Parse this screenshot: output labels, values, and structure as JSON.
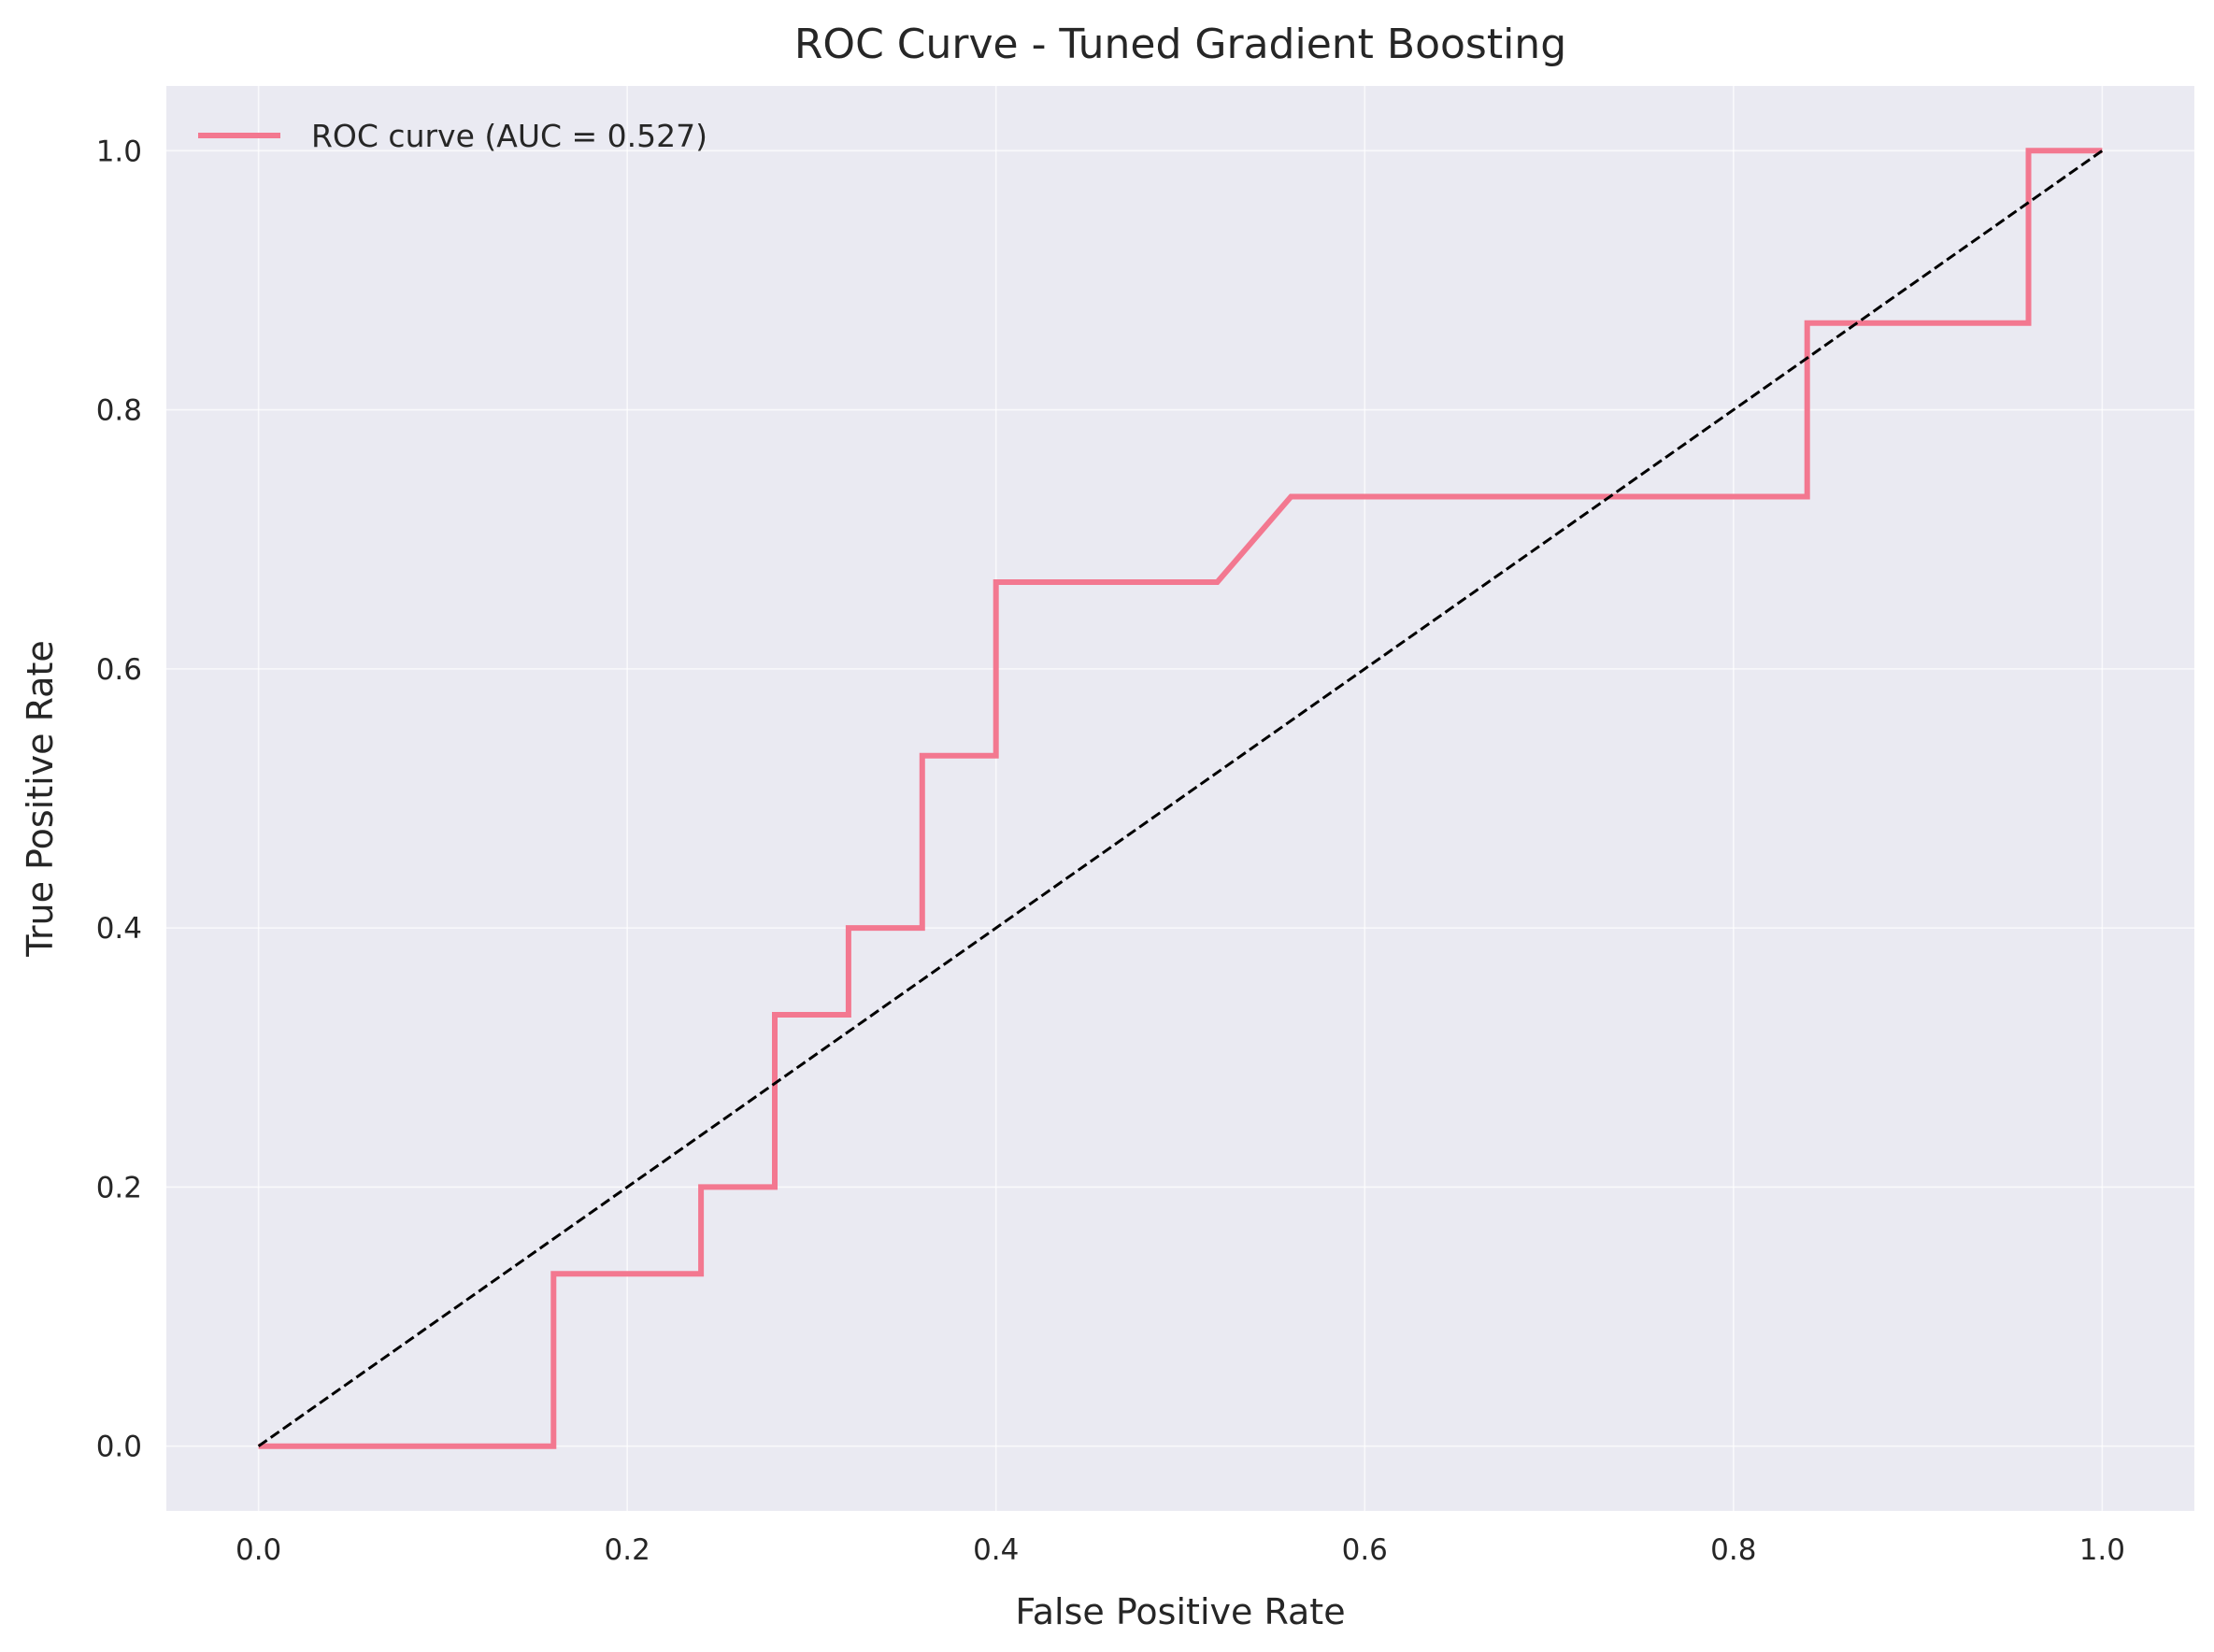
{
  "chart_data": {
    "type": "line",
    "title": "ROC Curve - Tuned Gradient Boosting",
    "xlabel": "False Positive Rate",
    "ylabel": "True Positive Rate",
    "xlim": [
      -0.05,
      1.05
    ],
    "ylim": [
      -0.05,
      1.05
    ],
    "xticks": [
      "0.0",
      "0.2",
      "0.4",
      "0.6",
      "0.8",
      "1.0"
    ],
    "yticks": [
      "0.0",
      "0.2",
      "0.4",
      "0.6",
      "0.8",
      "1.0"
    ],
    "grid": true,
    "legend_position": "upper-left",
    "series": [
      {
        "name": "ROC curve (AUC = 0.527)",
        "color": "#f37890",
        "style": "solid",
        "x": [
          0.0,
          0.16,
          0.16,
          0.24,
          0.24,
          0.28,
          0.28,
          0.32,
          0.32,
          0.36,
          0.36,
          0.4,
          0.4,
          0.52,
          0.56,
          0.84,
          0.84,
          0.96,
          0.96,
          1.0
        ],
        "y": [
          0.0,
          0.0,
          0.133,
          0.133,
          0.2,
          0.2,
          0.333,
          0.333,
          0.4,
          0.4,
          0.533,
          0.533,
          0.667,
          0.667,
          0.733,
          0.733,
          0.867,
          0.867,
          1.0,
          1.0
        ]
      },
      {
        "name": "",
        "color": "#000000",
        "style": "dashed",
        "x": [
          0.0,
          1.0
        ],
        "y": [
          0.0,
          1.0
        ]
      }
    ],
    "colors": {
      "plot_background": "#eaeaf2",
      "grid": "#ffffff",
      "text": "#262626"
    }
  }
}
